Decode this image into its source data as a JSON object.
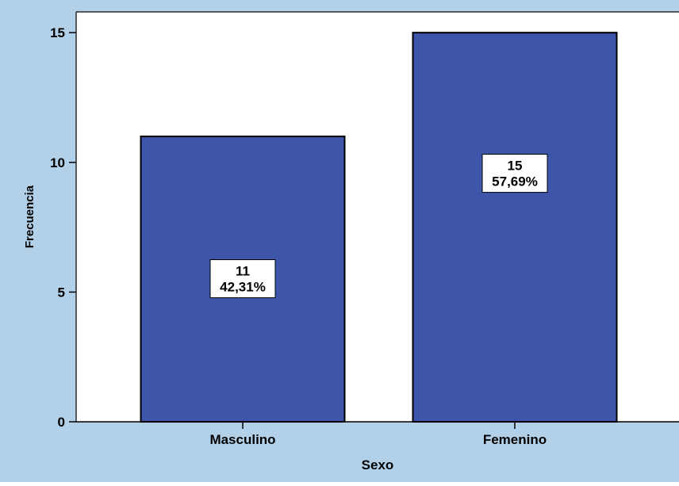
{
  "chart_data": {
    "type": "bar",
    "categories": [
      "Masculino",
      "Femenino"
    ],
    "values": [
      11,
      15
    ],
    "data_labels": [
      [
        "11",
        "42,31%"
      ],
      [
        "15",
        "57,69%"
      ]
    ],
    "xlabel": "Sexo",
    "ylabel": "Frecuencia",
    "ylim": [
      0,
      15.8
    ],
    "yticks": [
      "0",
      "5",
      "10",
      "15"
    ],
    "grid": false,
    "colors": {
      "bar": "#3d56a9",
      "bar_stroke": "#000000",
      "outer_background": "#b3d0e9",
      "plot_background": "#ffffff",
      "frame": "#2b2b2b"
    }
  }
}
